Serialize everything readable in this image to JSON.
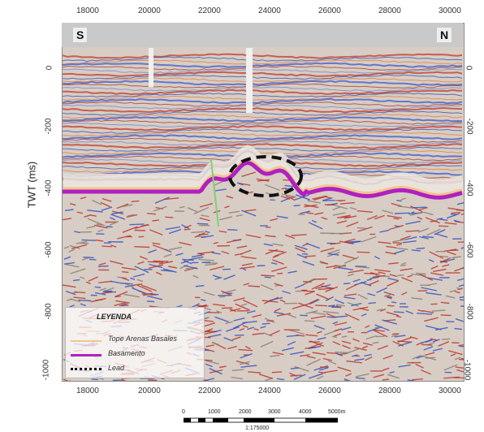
{
  "axis": {
    "x_ticks": [
      "18000",
      "20000",
      "22000",
      "24000",
      "26000",
      "28000",
      "30000"
    ],
    "y_ticks": [
      "0",
      "-200",
      "-400",
      "-600",
      "-800",
      "-1000"
    ],
    "ylabel": "TWT (ms)"
  },
  "directions": {
    "left": "S",
    "right": "N"
  },
  "legend": {
    "title": "LEYENDA",
    "items": [
      {
        "label": "Tope Arenas Basales",
        "color": "#f2c48c",
        "style": "solid"
      },
      {
        "label": "Basamento",
        "color": "#b020c0",
        "style": "solid"
      },
      {
        "label": "Lead",
        "color": "#111111",
        "style": "dotted"
      }
    ]
  },
  "scale_bar": {
    "labels": [
      "0",
      "1000",
      "2000",
      "3000",
      "4000",
      "5000m"
    ],
    "ratio": "1:175000"
  }
}
